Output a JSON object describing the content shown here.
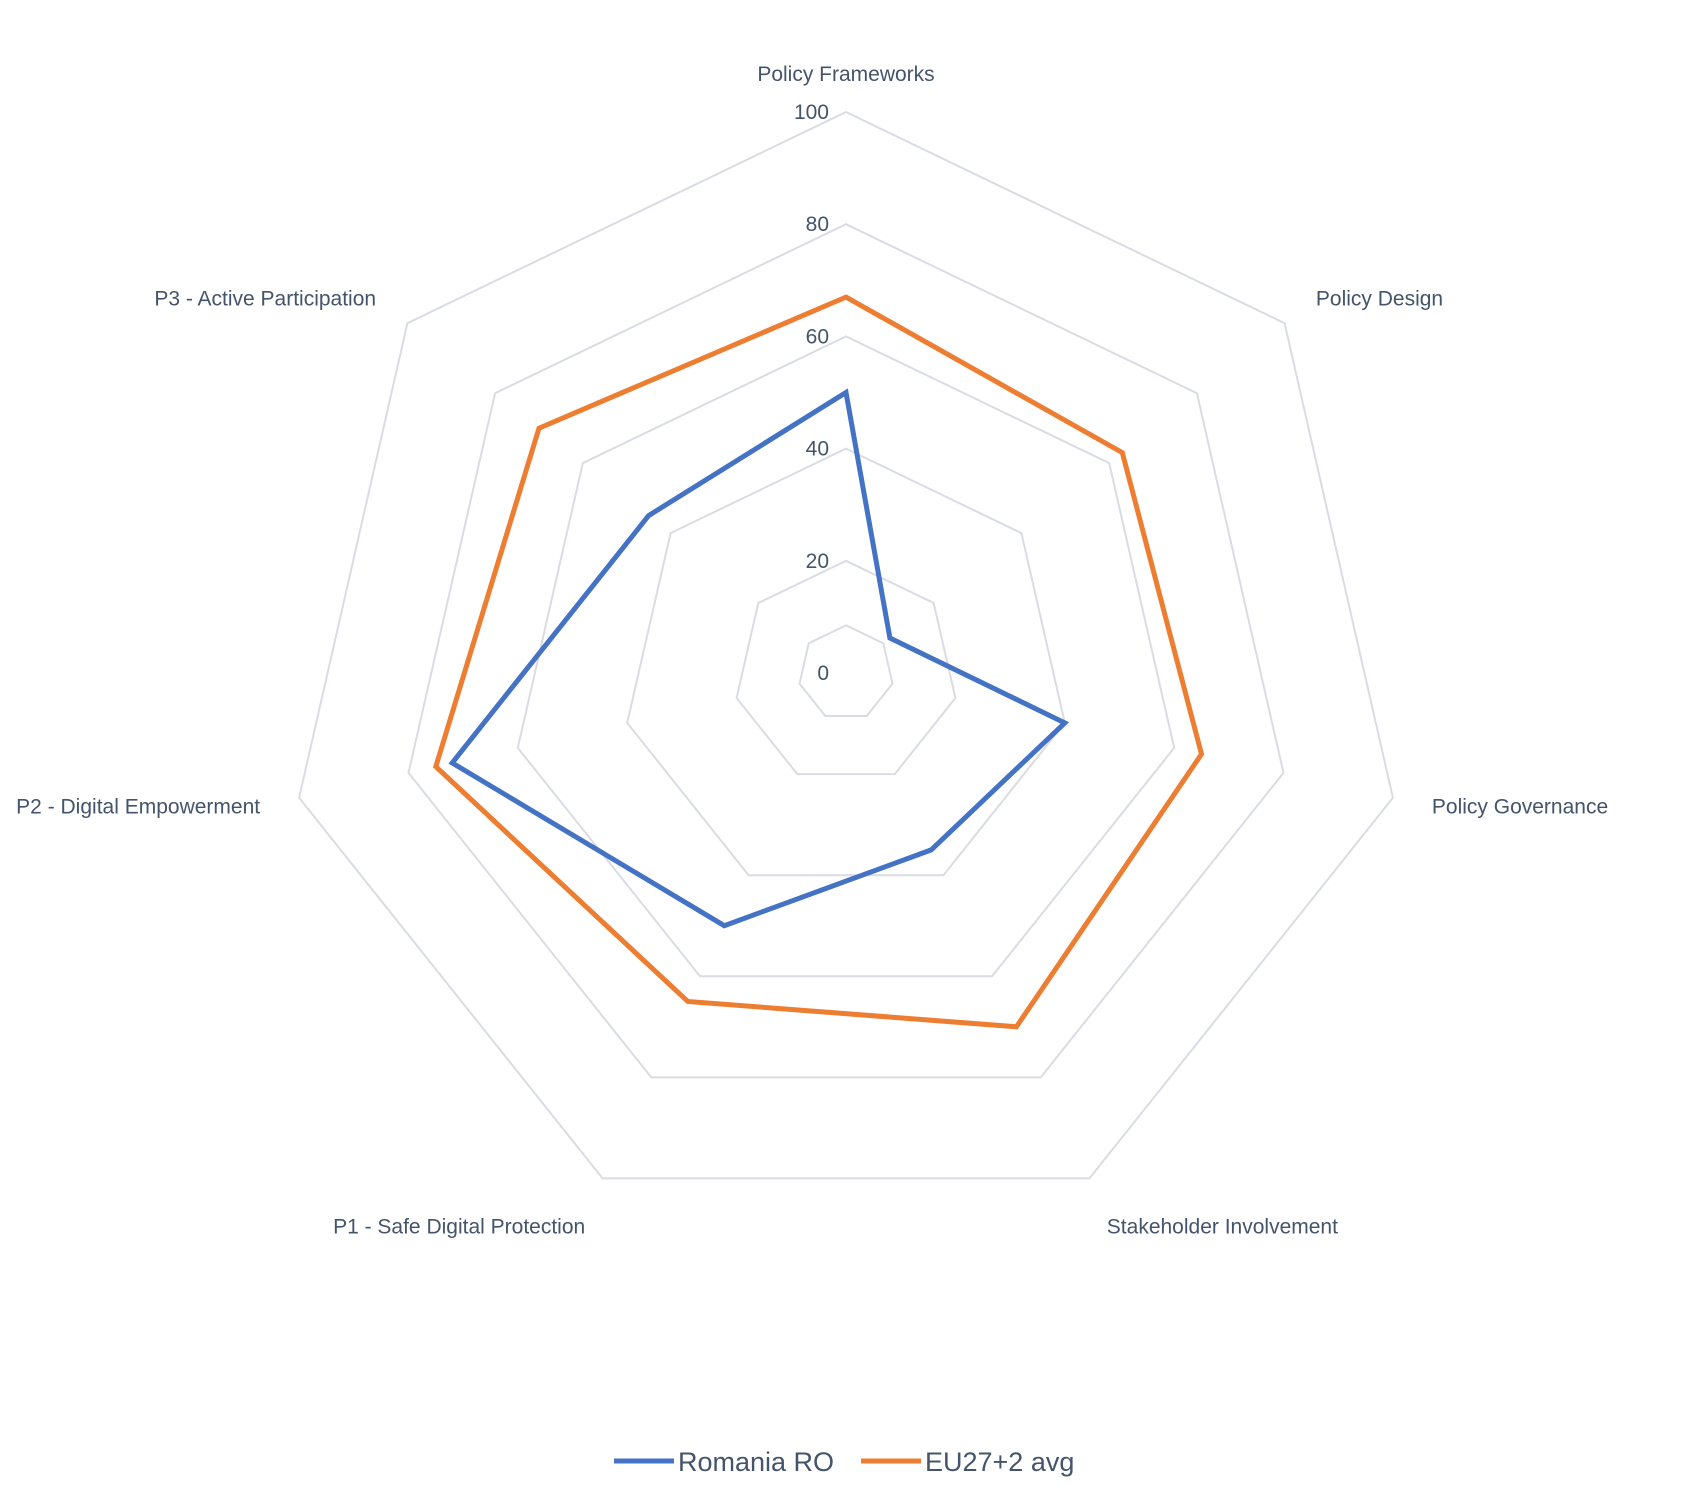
{
  "chart_data": {
    "type": "radar",
    "title": "",
    "axes": [
      "Policy Frameworks",
      "Policy Design",
      "Policy Governance",
      "Stakeholder Involvement",
      "P1 - Safe Digital Protection",
      "P2 - Digital Empowerment",
      "P3 - Active Participation"
    ],
    "r_ticks": [
      "0",
      "20",
      "40",
      "60",
      "80",
      "100"
    ],
    "rlim": [
      0,
      100
    ],
    "grid": true,
    "legend_position": "bottom",
    "series": [
      {
        "name": "Romania RO",
        "color": "#4472c4",
        "values": [
          50,
          10,
          40,
          35,
          50,
          72,
          45
        ]
      },
      {
        "name": "EU27+2 avg",
        "color": "#ed7d31",
        "values": [
          67,
          63,
          65,
          70,
          65,
          75,
          70
        ]
      }
    ]
  }
}
